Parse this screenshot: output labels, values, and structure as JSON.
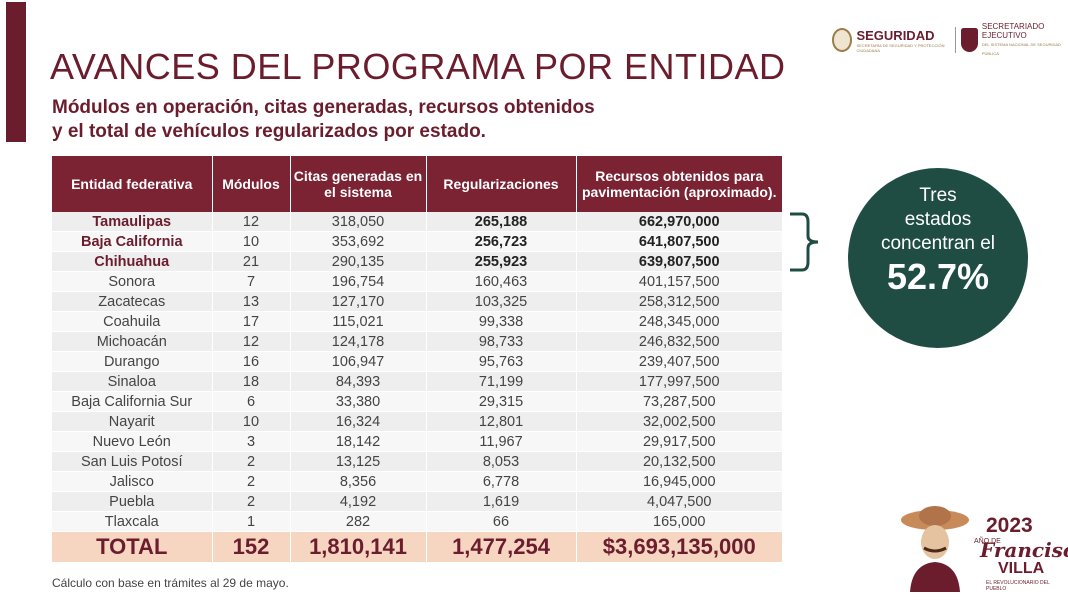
{
  "header": {
    "title": "AVANCES DEL PROGRAMA POR ENTIDAD",
    "subtitle_line1": "Módulos en operación, citas generadas, recursos obtenidos",
    "subtitle_line2": "y el total de vehículos regularizados por estado.",
    "logo_seguridad": "SEGURIDAD",
    "logo_seguridad_sub": "SECRETARÍA DE SEGURIDAD Y PROTECCIÓN CIUDADANA",
    "logo_sesnsp_1": "SECRETARIADO",
    "logo_sesnsp_2": "EJECUTIVO",
    "logo_sesnsp_sub": "DEL SISTEMA NACIONAL DE SEGURIDAD PÚBLICA"
  },
  "table": {
    "headers": [
      "Entidad federativa",
      "Módulos",
      "Citas generadas en el sistema",
      "Regularizaciones",
      "Recursos obtenidos para pavimentación (aproximado)."
    ],
    "rows": [
      [
        "Tamaulipas",
        "12",
        "318,050",
        "265,188",
        "662,970,000"
      ],
      [
        "Baja California",
        "10",
        "353,692",
        "256,723",
        "641,807,500"
      ],
      [
        "Chihuahua",
        "21",
        "290,135",
        "255,923",
        "639,807,500"
      ],
      [
        "Sonora",
        "7",
        "196,754",
        "160,463",
        "401,157,500"
      ],
      [
        "Zacatecas",
        "13",
        "127,170",
        "103,325",
        "258,312,500"
      ],
      [
        "Coahuila",
        "17",
        "115,021",
        "99,338",
        "248,345,000"
      ],
      [
        "Michoacán",
        "12",
        "124,178",
        "98,733",
        "246,832,500"
      ],
      [
        "Durango",
        "16",
        "106,947",
        "95,763",
        "239,407,500"
      ],
      [
        "Sinaloa",
        "18",
        "84,393",
        "71,199",
        "177,997,500"
      ],
      [
        "Baja California Sur",
        "6",
        "33,380",
        "29,315",
        "73,287,500"
      ],
      [
        "Nayarit",
        "10",
        "16,324",
        "12,801",
        "32,002,500"
      ],
      [
        "Nuevo León",
        "3",
        "18,142",
        "11,967",
        "29,917,500"
      ],
      [
        "San Luis Potosí",
        "2",
        "13,125",
        "8,053",
        "20,132,500"
      ],
      [
        "Jalisco",
        "2",
        "8,356",
        "6,778",
        "16,945,000"
      ],
      [
        "Puebla",
        "2",
        "4,192",
        "1,619",
        "4,047,500"
      ],
      [
        "Tlaxcala",
        "1",
        "282",
        "66",
        "165,000"
      ]
    ],
    "total": [
      "TOTAL",
      "152",
      "1,810,141",
      "1,477,254",
      "$3,693,135,000"
    ]
  },
  "callout": {
    "text_line1": "Tres",
    "text_line2": "estados",
    "text_line3": "concentran el",
    "percent": "52.7%"
  },
  "footnote": "Cálculo con base en trámites al 29 de mayo.",
  "anniversary": {
    "year": "2023",
    "small": "AÑO DE",
    "name": "Francisco",
    "name2": "VILLA",
    "tag": "EL REVOLUCIONARIO DEL PUEBLO"
  },
  "colors": {
    "brand": "#6b1d2e",
    "header_bg": "#7b2233",
    "callout_bg": "#1f4d44",
    "total_bg": "#f6d5c1"
  }
}
